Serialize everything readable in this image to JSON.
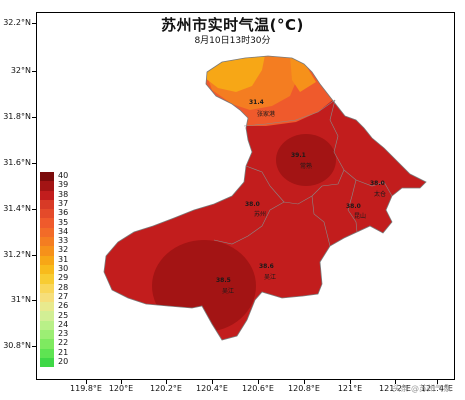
{
  "map": {
    "title": "苏州市实时气温(°C)",
    "subtitle": "8月10日13时30分",
    "lat_labels": [
      "32.2°N",
      "32°N",
      "31.8°N",
      "31.6°N",
      "31.4°N",
      "31.2°N",
      "31°N",
      "30.8°N"
    ],
    "lon_labels": [
      "119.8°E",
      "120°E",
      "120.2°E",
      "120.4°E",
      "120.6°E",
      "120.8°E",
      "121°E",
      "121.2°E",
      "121.4°E"
    ],
    "legend": {
      "values": [
        "40",
        "39",
        "38",
        "37",
        "36",
        "35",
        "34",
        "33",
        "32",
        "31",
        "30",
        "29",
        "28",
        "27",
        "26",
        "25",
        "24",
        "23",
        "22",
        "21",
        "20"
      ],
      "colors": [
        "#7b0b0b",
        "#a31414",
        "#c21d1d",
        "#d83a26",
        "#e44a2a",
        "#ef5a2c",
        "#f26b28",
        "#f47d21",
        "#f6911a",
        "#f7a716",
        "#f8bb1c",
        "#f8cc32",
        "#f9d75a",
        "#f6df7b",
        "#e8ea8e",
        "#d2ef95",
        "#b9f088",
        "#9cee74",
        "#7eea60",
        "#5ee452",
        "#3ed846"
      ]
    },
    "stations": [
      {
        "value": "31.4",
        "name": "张家港"
      },
      {
        "value": "39.1",
        "name": "常熟"
      },
      {
        "value": "38.0",
        "name": "太仓"
      },
      {
        "value": "38.0",
        "name": "苏州"
      },
      {
        "value": "38.0",
        "name": "昆山"
      },
      {
        "value": "38.6",
        "name": "吴江"
      },
      {
        "value": "38.5",
        "name": "吴江"
      }
    ],
    "watermark": "头条 @苏州气象"
  }
}
